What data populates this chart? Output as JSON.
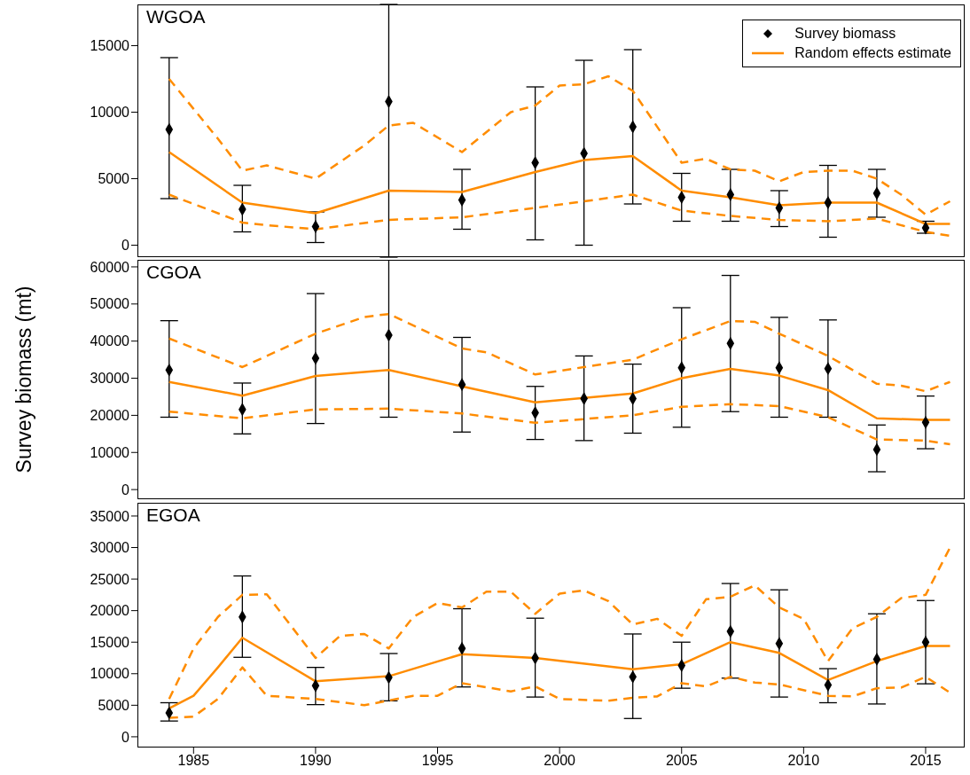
{
  "chart_data": [
    {
      "type": "scatter",
      "title": "WGOA",
      "xlim": [
        1982.7,
        2016.6
      ],
      "ylim": [
        -900,
        18100
      ],
      "yticks": [
        0,
        5000,
        10000,
        15000
      ],
      "tick_labels": "y",
      "grid": false,
      "legend": "top right",
      "series": [
        {
          "name": "Survey biomass",
          "color": "#000000",
          "marker": "diamond",
          "x": [
            1984,
            1987,
            1990,
            1993,
            1996,
            1999,
            2001,
            2003,
            2005,
            2007,
            2009,
            2011,
            2013,
            2015
          ],
          "values": [
            8700,
            2700,
            1400,
            10800,
            3400,
            6200,
            6900,
            8900,
            3600,
            3800,
            2800,
            3200,
            3900,
            1300
          ],
          "errors": [
            [
              3500,
              14100
            ],
            [
              1000,
              4500
            ],
            [
              200,
              2500
            ],
            [
              -900,
              18100
            ],
            [
              1200,
              5700
            ],
            [
              400,
              11900
            ],
            [
              0,
              13900
            ],
            [
              3100,
              14700
            ],
            [
              1800,
              5400
            ],
            [
              1800,
              5700
            ],
            [
              1400,
              4100
            ],
            [
              600,
              6000
            ],
            [
              2100,
              5700
            ],
            [
              900,
              1800
            ]
          ]
        },
        {
          "name": "Random effects estimate",
          "type": "line",
          "color": "#ff8c00",
          "line_style": "solid",
          "x": [
            1984,
            1987,
            1990,
            1993,
            1996,
            1999,
            2001,
            2003,
            2005,
            2007,
            2009,
            2011,
            2013,
            2015,
            2016
          ],
          "values": [
            7000,
            3200,
            2400,
            4100,
            4000,
            5500,
            6400,
            6700,
            4100,
            3600,
            3000,
            3200,
            3200,
            1600,
            1600
          ]
        },
        {
          "type": "line",
          "color": "#ff8c00",
          "line_style": "dashed",
          "x": [
            1984,
            1986,
            1987,
            1988,
            1990,
            1992,
            1993,
            1994,
            1996,
            1998,
            1999,
            2000,
            2001,
            2002,
            2003,
            2005,
            2006,
            2007,
            2008,
            2009,
            2010,
            2011,
            2012,
            2013,
            2014,
            2015,
            2016
          ],
          "values": [
            12500,
            8000,
            5600,
            6000,
            5000,
            7500,
            9000,
            9200,
            7000,
            10000,
            10500,
            12000,
            12100,
            12700,
            11600,
            6200,
            6500,
            5700,
            5600,
            4800,
            5500,
            5600,
            5600,
            5000,
            3800,
            2300,
            3300
          ]
        },
        {
          "type": "line",
          "color": "#ff8c00",
          "line_style": "dashed",
          "x": [
            1984,
            1987,
            1988,
            1990,
            1993,
            1996,
            1999,
            2001,
            2003,
            2005,
            2007,
            2009,
            2011,
            2013,
            2015,
            2016
          ],
          "values": [
            3800,
            1700,
            1500,
            1200,
            1900,
            2100,
            2800,
            3300,
            3800,
            2600,
            2200,
            1900,
            1800,
            2000,
            1000,
            700
          ]
        }
      ]
    },
    {
      "type": "scatter",
      "title": "CGOA",
      "ylabel": "Survey biomass (mt)",
      "xlim": [
        1982.7,
        2016.6
      ],
      "ylim": [
        -2600,
        61900
      ],
      "yticks": [
        0,
        10000,
        20000,
        30000,
        40000,
        50000,
        60000
      ],
      "tick_labels": "y",
      "grid": false,
      "series": [
        {
          "color": "#000000",
          "marker": "diamond",
          "x": [
            1984,
            1987,
            1990,
            1993,
            1996,
            1999,
            2001,
            2003,
            2005,
            2007,
            2009,
            2011,
            2013,
            2015
          ],
          "values": [
            32200,
            21600,
            35400,
            41600,
            28300,
            20700,
            24500,
            24500,
            32800,
            39400,
            32800,
            32600,
            10800,
            18100
          ],
          "errors": [
            [
              19500,
              45500
            ],
            [
              15000,
              28700
            ],
            [
              17800,
              52800
            ],
            [
              19500,
              61900
            ],
            [
              15500,
              41000
            ],
            [
              13500,
              27800
            ],
            [
              13200,
              36000
            ],
            [
              15200,
              33800
            ],
            [
              16800,
              49000
            ],
            [
              21000,
              57700
            ],
            [
              19500,
              46400
            ],
            [
              19500,
              45700
            ],
            [
              4800,
              17400
            ],
            [
              11000,
              25200
            ]
          ]
        },
        {
          "type": "line",
          "color": "#ff8c00",
          "line_style": "solid",
          "x": [
            1984,
            1987,
            1990,
            1993,
            1996,
            1999,
            2001,
            2003,
            2005,
            2007,
            2009,
            2011,
            2013,
            2015,
            2016
          ],
          "values": [
            29000,
            25300,
            30600,
            32200,
            27800,
            23500,
            24700,
            25900,
            30000,
            32500,
            30700,
            26800,
            19200,
            18800,
            18800
          ]
        },
        {
          "type": "line",
          "color": "#ff8c00",
          "line_style": "dashed",
          "x": [
            1984,
            1987,
            1990,
            1992,
            1993,
            1996,
            1997,
            1999,
            2001,
            2003,
            2005,
            2007,
            2008,
            2009,
            2011,
            2013,
            2014,
            2015,
            2016
          ],
          "values": [
            40700,
            33000,
            42000,
            46500,
            47300,
            38000,
            37000,
            31000,
            33000,
            35000,
            40500,
            45400,
            45200,
            42000,
            36000,
            28500,
            28000,
            26500,
            29000
          ]
        },
        {
          "type": "line",
          "color": "#ff8c00",
          "line_style": "dashed",
          "x": [
            1984,
            1987,
            1990,
            1993,
            1996,
            1999,
            2001,
            2003,
            2005,
            2007,
            2009,
            2011,
            2013,
            2015,
            2016
          ],
          "values": [
            21000,
            19200,
            21600,
            21800,
            20500,
            18000,
            19000,
            20000,
            22300,
            23000,
            22500,
            19500,
            13500,
            13200,
            12200
          ]
        }
      ]
    },
    {
      "type": "scatter",
      "title": "EGOA",
      "xlim": [
        1982.7,
        2016.6
      ],
      "xticks": [
        1985,
        1990,
        1995,
        2000,
        2005,
        2010,
        2015
      ],
      "ylim": [
        -1700,
        37100
      ],
      "yticks": [
        0,
        5000,
        10000,
        15000,
        20000,
        25000,
        30000,
        35000
      ],
      "grid": false,
      "series": [
        {
          "color": "#000000",
          "marker": "diamond",
          "x": [
            1984,
            1987,
            1990,
            1993,
            1996,
            1999,
            2003,
            2005,
            2007,
            2009,
            2011,
            2013,
            2015
          ],
          "values": [
            3800,
            19000,
            8100,
            9400,
            14000,
            12500,
            9500,
            11300,
            16700,
            14800,
            8200,
            12300,
            15000
          ],
          "errors": [
            [
              2500,
              5400
            ],
            [
              12600,
              25500
            ],
            [
              5100,
              11000
            ],
            [
              5700,
              13200
            ],
            [
              7900,
              20300
            ],
            [
              6300,
              18800
            ],
            [
              2900,
              16300
            ],
            [
              7700,
              15000
            ],
            [
              9300,
              24300
            ],
            [
              6300,
              23300
            ],
            [
              5400,
              10800
            ],
            [
              5200,
              19500
            ],
            [
              8400,
              21600
            ]
          ]
        },
        {
          "type": "line",
          "color": "#ff8c00",
          "line_style": "solid",
          "x": [
            1984,
            1985,
            1986,
            1987,
            1990,
            1993,
            1996,
            1999,
            2003,
            2005,
            2007,
            2009,
            2011,
            2013,
            2015,
            2016
          ],
          "values": [
            4500,
            6500,
            11000,
            15700,
            8800,
            9600,
            13100,
            12500,
            10700,
            11500,
            15000,
            13300,
            9000,
            12000,
            14400,
            14400
          ]
        },
        {
          "type": "line",
          "color": "#ff8c00",
          "line_style": "dashed",
          "x": [
            1984,
            1985,
            1986,
            1987,
            1988,
            1990,
            1991,
            1992,
            1993,
            1994,
            1995,
            1996,
            1997,
            1998,
            1999,
            2000,
            2001,
            2002,
            2003,
            2004,
            2005,
            2006,
            2007,
            2008,
            2009,
            2010,
            2011,
            2012,
            2013,
            2014,
            2015,
            2016
          ],
          "values": [
            6000,
            14000,
            19000,
            22500,
            22600,
            12500,
            16000,
            16300,
            14000,
            19000,
            21200,
            20500,
            23000,
            23000,
            19500,
            22700,
            23200,
            21500,
            17800,
            18700,
            16000,
            21800,
            22200,
            24000,
            20500,
            18700,
            12000,
            17200,
            19000,
            22000,
            22500,
            30000
          ]
        },
        {
          "type": "line",
          "color": "#ff8c00",
          "line_style": "dashed",
          "x": [
            1984,
            1985,
            1986,
            1987,
            1988,
            1990,
            1992,
            1994,
            1995,
            1996,
            1998,
            1999,
            2000,
            2002,
            2003,
            2004,
            2005,
            2006,
            2007,
            2008,
            2009,
            2011,
            2012,
            2013,
            2014,
            2015,
            2016
          ],
          "values": [
            3000,
            3200,
            6000,
            11000,
            6500,
            6000,
            5000,
            6500,
            6500,
            8500,
            7200,
            8000,
            6000,
            5700,
            6200,
            6400,
            8500,
            8000,
            9500,
            8600,
            8300,
            6500,
            6400,
            7700,
            7800,
            9500,
            7000
          ]
        }
      ]
    }
  ]
}
